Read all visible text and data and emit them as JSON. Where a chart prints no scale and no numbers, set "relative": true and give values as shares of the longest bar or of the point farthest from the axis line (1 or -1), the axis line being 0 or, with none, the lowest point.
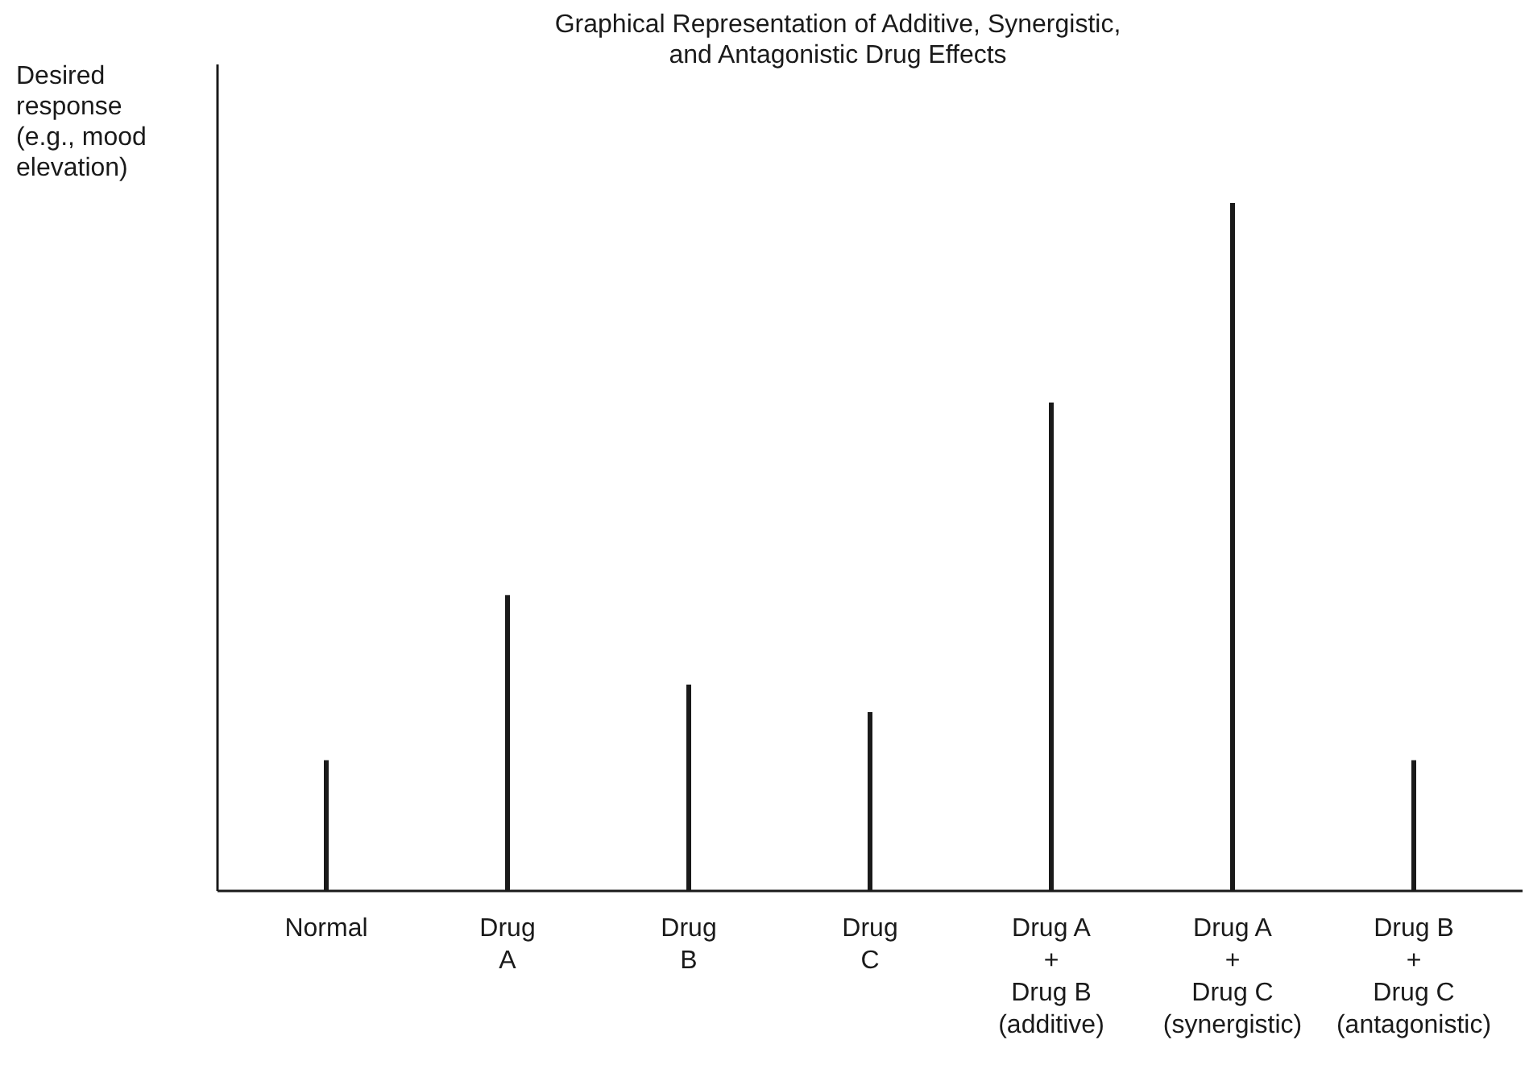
{
  "chart_data": {
    "type": "bar",
    "title": "Graphical Representation of Additive, Synergistic, and Antagonistic Drug Effects",
    "ylabel": "Desired response (e.g., mood elevation)",
    "relative": true,
    "color": "#1a1a1a",
    "categories": [
      "Normal",
      "Drug\nA",
      "Drug\nB",
      "Drug\nC",
      "Drug A\n+\nDrug B\n(additive)",
      "Drug A\n+\nDrug C\n(synergistic)",
      "Drug B\n+\nDrug C\n(antagonistic)"
    ],
    "values": [
      0.19,
      0.43,
      0.3,
      0.26,
      0.71,
      1,
      0.19
    ]
  }
}
